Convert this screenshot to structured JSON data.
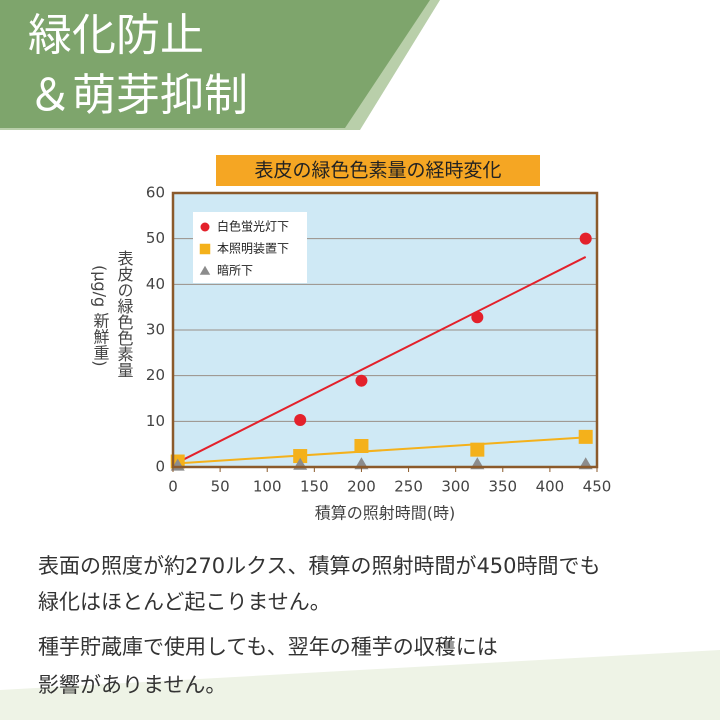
{
  "header": {
    "lines": [
      "緑化防止",
      "＆萌芽抑制"
    ]
  },
  "chart_data": {
    "type": "scatter",
    "title": "表皮の緑色色素量の経時変化",
    "y_label": [
      "表皮の緑色色素量",
      "(μg/g 新鮮重)"
    ],
    "x_label": "積算の照射時間(時)",
    "x": [
      5,
      135,
      200,
      323,
      438
    ],
    "series": [
      {
        "name": "白色蛍光灯下",
        "color": "#e3212b",
        "marker": "circle",
        "values": [
          1,
          10.3,
          18.9,
          32.8,
          50
        ],
        "trend": {
          "x": [
            5,
            438
          ],
          "values": [
            1,
            46
          ]
        }
      },
      {
        "name": "本照明装置下",
        "color": "#f4b11b",
        "marker": "square",
        "values": [
          1.2,
          2.4,
          4.6,
          3.8,
          6.6
        ],
        "trend": {
          "x": [
            5,
            438
          ],
          "values": [
            0.8,
            6.5
          ]
        }
      },
      {
        "name": "暗所下",
        "color": "#8c8c8c",
        "marker": "triangle",
        "values": [
          0.3,
          0.5,
          0.6,
          0.6,
          0.6
        ]
      }
    ],
    "xlim": [
      0,
      450
    ],
    "xticks": [
      0,
      50,
      100,
      150,
      200,
      250,
      300,
      350,
      400,
      450
    ],
    "ylim": [
      0,
      60
    ],
    "yticks": [
      0,
      10,
      20,
      30,
      40,
      50,
      60
    ],
    "grid": true,
    "legend": "upper-left"
  },
  "text": {
    "paragraphs": [
      [
        "表面の照度が約270ルクス、積算の照射時間が450時間でも",
        "緑化はほとんど起こりません。"
      ],
      [
        "種芋貯蔵庫で使用しても、翌年の種芋の収穫には",
        "影響がありません。"
      ]
    ]
  }
}
